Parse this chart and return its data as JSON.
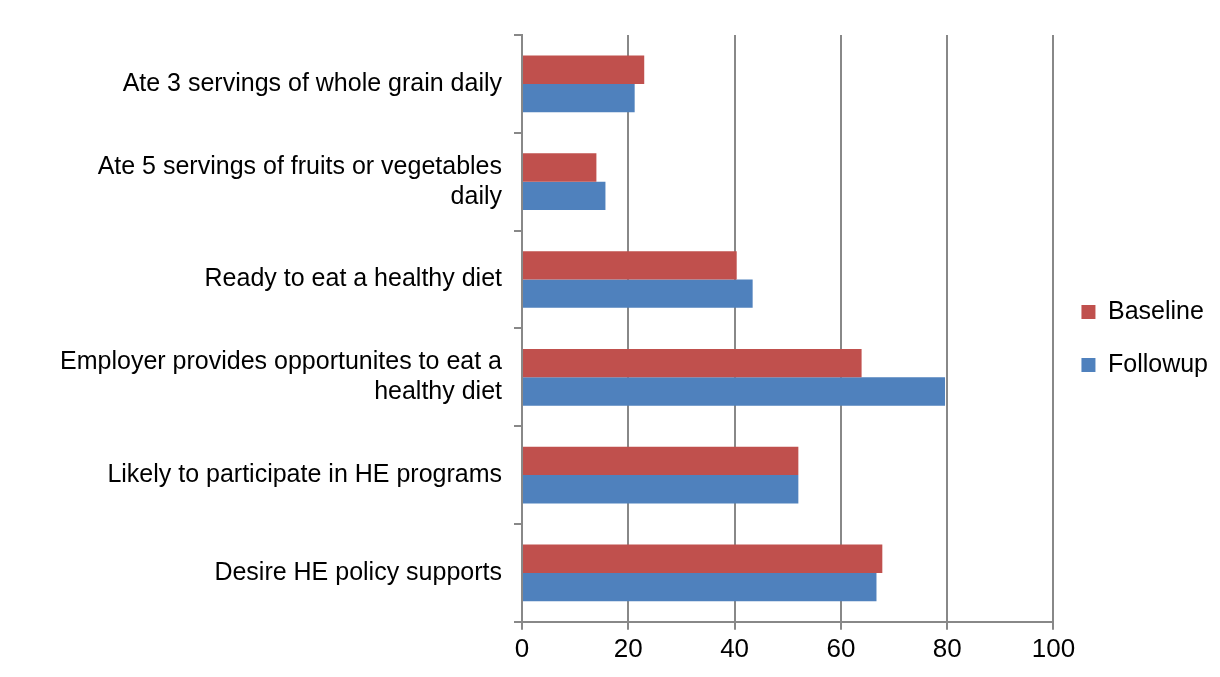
{
  "chart_data": {
    "type": "bar",
    "orientation": "horizontal",
    "categories": [
      "Ate 3 servings of whole grain daily",
      "Ate 5 servings of fruits or vegetables daily",
      "Ready to eat a healthy diet",
      "Employer provides opportunites to eat a healthy diet",
      "Likely to participate in HE programs",
      "Desire HE policy supports"
    ],
    "series": [
      {
        "name": "Baseline",
        "color": "#c0504d",
        "values": [
          23.0,
          14.0,
          40.4,
          63.9,
          52.0,
          67.8
        ]
      },
      {
        "name": "Followup",
        "color": "#4f81bd",
        "values": [
          21.2,
          15.7,
          43.4,
          79.6,
          52.0,
          66.7
        ]
      }
    ],
    "xlim": [
      0,
      100
    ],
    "xticks": [
      0,
      20,
      40,
      60,
      80,
      100
    ],
    "grid": "x",
    "legend": "right"
  }
}
